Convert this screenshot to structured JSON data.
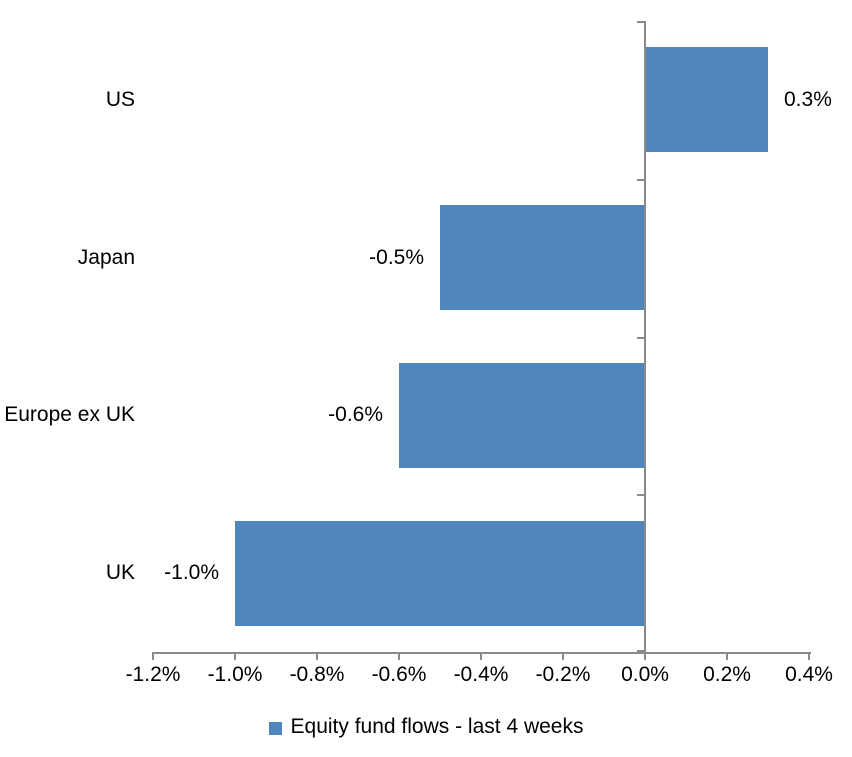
{
  "chart_data": {
    "type": "bar",
    "orientation": "horizontal",
    "title": "",
    "xlabel": "",
    "ylabel": "",
    "grid": false,
    "categories": [
      "US",
      "Japan",
      "Europe ex UK",
      "UK"
    ],
    "series": [
      {
        "name": "Equity fund flows - last 4 weeks",
        "values": [
          0.3,
          -0.5,
          -0.6,
          -1.0
        ],
        "data_labels": [
          "0.3%",
          "-0.5%",
          "-0.6%",
          "-1.0%"
        ]
      }
    ],
    "xlim": [
      -1.2,
      0.4
    ],
    "x_tick_step": 0.2,
    "x_tick_labels": [
      "-1.2%",
      "-1.0%",
      "-0.8%",
      "-0.6%",
      "-0.4%",
      "-0.2%",
      "0.0%",
      "0.2%",
      "0.4%"
    ],
    "legend": {
      "position": "bottom",
      "label": "Equity fund flows - last 4 weeks"
    },
    "colors": {
      "bar": "#4F86BE",
      "axis": "#8A8A8A",
      "text": "#000000",
      "background": "#FFFFFF"
    }
  }
}
